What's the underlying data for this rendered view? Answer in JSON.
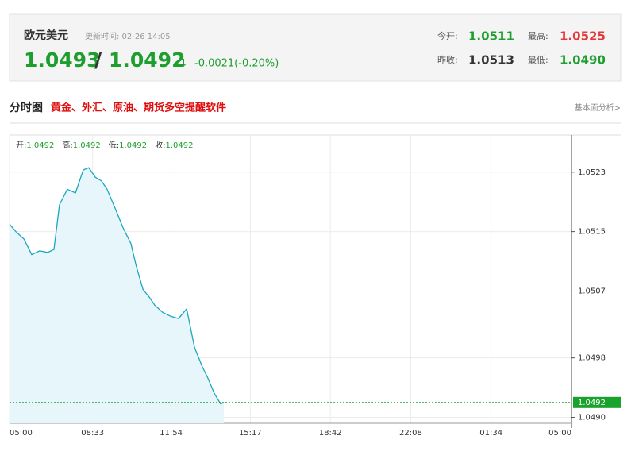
{
  "header": {
    "title": "欧元美元",
    "update_time": "更新时间: 02-26 14:05",
    "bid": "1.0493",
    "separator": "/",
    "ask": "1.0492",
    "arrow": "↓",
    "change": "-0.0021(-0.20%)",
    "stats": [
      {
        "label": "今开:",
        "value": "1.0511"
      },
      {
        "label": "最高:",
        "value": "1.0525"
      },
      {
        "label": "昨收:",
        "value": "1.0513"
      },
      {
        "label": "最低:",
        "value": "1.0490"
      }
    ]
  },
  "section": {
    "title": "分时图",
    "promo": "黄金、外汇、原油、期货多空提醒软件",
    "link": "基本面分析>"
  },
  "chart_data": {
    "type": "line",
    "info": [
      {
        "label": "开:",
        "value": "1.0492"
      },
      {
        "label": "高:",
        "value": "1.0492"
      },
      {
        "label": "低:",
        "value": "1.0492"
      },
      {
        "label": "收:",
        "value": "1.0492"
      }
    ],
    "series": [
      {
        "color": "#1ba6bf",
        "x": [
          0,
          16,
          37,
          57,
          77,
          98,
          114,
          128,
          148,
          169,
          189,
          203,
          220,
          236,
          250,
          271,
          291,
          311,
          325,
          342,
          358,
          372,
          393,
          413,
          433,
          454,
          474,
          494,
          508,
          525,
          541,
          549
        ],
        "values": [
          1.0516,
          1.0515,
          1.0514,
          1.05119,
          1.05124,
          1.05122,
          1.05126,
          1.05186,
          1.05207,
          1.05202,
          1.05233,
          1.05236,
          1.05223,
          1.05218,
          1.05207,
          1.05181,
          1.05155,
          1.05134,
          1.05103,
          1.05072,
          1.05062,
          1.05051,
          1.05041,
          1.05036,
          1.05033,
          1.05046,
          1.04994,
          1.04968,
          1.04953,
          1.04932,
          1.04918,
          1.0492
        ]
      }
    ],
    "current": 1.0492,
    "current_color": "#1aa32c",
    "xlim": [
      0,
      1440
    ],
    "xticks": [
      {
        "value": 0,
        "label": "05:00"
      },
      {
        "value": 213,
        "label": "08:33"
      },
      {
        "value": 414,
        "label": "11:54"
      },
      {
        "value": 617,
        "label": "15:17"
      },
      {
        "value": 822,
        "label": "18:42"
      },
      {
        "value": 1028,
        "label": "22:08"
      },
      {
        "value": 1234,
        "label": "01:34"
      },
      {
        "value": 1440,
        "label": "05:00"
      }
    ],
    "ylim": [
      1.04892,
      1.0528
    ],
    "yticks": [
      1.0523,
      1.0515,
      1.0507,
      1.0498,
      {
        "value": 1.049,
        "label": "1.0490"
      }
    ],
    "grid": true
  }
}
